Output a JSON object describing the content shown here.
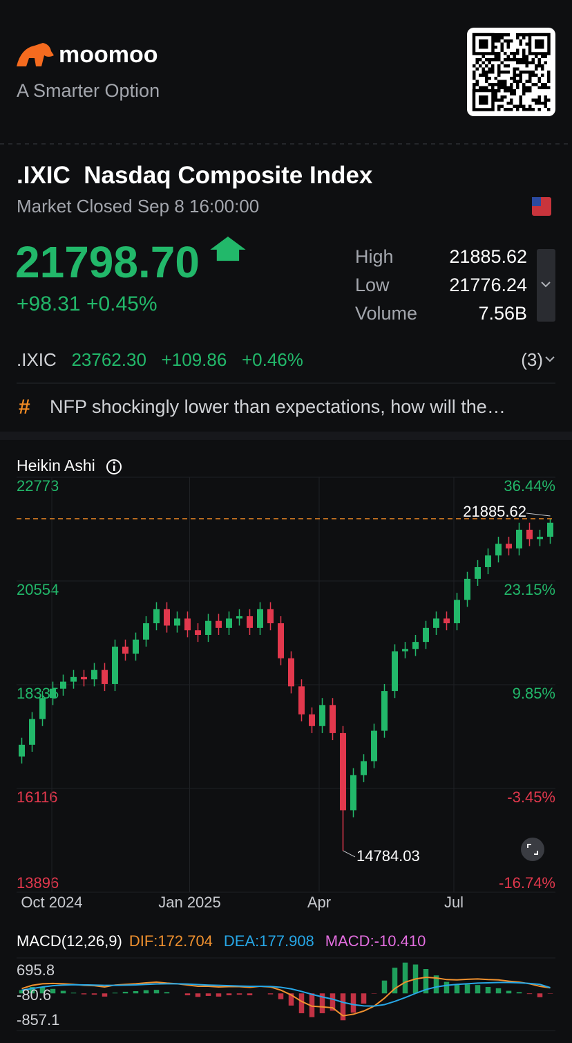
{
  "header": {
    "brand": "moomoo",
    "tagline": "A Smarter Option"
  },
  "quote": {
    "symbol": ".IXIC",
    "name": "Nasdaq Composite Index",
    "status": "Market Closed Sep 8 16:00:00",
    "price": "21798.70",
    "change": "+98.31",
    "change_pct": "+0.45%",
    "stats": [
      {
        "label": "High",
        "value": "21885.62"
      },
      {
        "label": "Low",
        "value": "21776.24"
      },
      {
        "label": "Volume",
        "value": "7.56B"
      }
    ]
  },
  "related": {
    "symbol": ".IXIC",
    "price": "23762.30",
    "change": "+109.86",
    "change_pct": "+0.46%",
    "count": "(3)"
  },
  "news": {
    "icon": "#",
    "text": "NFP shockingly lower than expectations, how will the…"
  },
  "chart_data": [
    {
      "type": "candlestick",
      "title": "Heikin Ashi",
      "xlim": [
        -0.5,
        51.5
      ],
      "xticks": [
        {
          "value": 2.9,
          "label": "Oct 2024"
        },
        {
          "value": 16.2,
          "label": "Jan 2025"
        },
        {
          "value": 28.7,
          "label": "Apr"
        },
        {
          "value": 41.7,
          "label": "Jul"
        }
      ],
      "ylim": [
        13896,
        22773
      ],
      "yticks": [
        22773,
        20554,
        18335,
        16116,
        13896
      ],
      "y2lim": [
        -16.74,
        36.44
      ],
      "y2ticks": [
        {
          "value": 36.44,
          "label": "36.44%"
        },
        {
          "value": 23.15,
          "label": "23.15%"
        },
        {
          "value": 9.85,
          "label": "9.85%"
        },
        {
          "value": -3.45,
          "label": "-3.45%"
        },
        {
          "value": -16.74,
          "label": "-16.74%"
        }
      ],
      "up_color": "#22b86a",
      "down_color": "#e2384d",
      "reference_color": "#f08a24",
      "open": [
        16800,
        17050,
        17600,
        18050,
        18250,
        18400,
        18500,
        18450,
        18650,
        18350,
        19150,
        19000,
        19300,
        19650,
        19950,
        19600,
        19750,
        19500,
        19400,
        19700,
        19550,
        19750,
        19800,
        19550,
        19950,
        19650,
        18900,
        18300,
        17700,
        17450,
        17900,
        17300,
        15650,
        16400,
        16700,
        17350,
        18200,
        19050,
        19100,
        19250,
        19550,
        19750,
        19650,
        20150,
        20600,
        20850,
        21100,
        21350,
        21250,
        21650,
        21450,
        21500
      ],
      "high": [
        17200,
        17750,
        18200,
        18400,
        18550,
        18650,
        18650,
        18800,
        18800,
        19300,
        19300,
        19450,
        19800,
        20100,
        20100,
        19900,
        19900,
        19650,
        19850,
        19850,
        19900,
        19950,
        19950,
        20100,
        20100,
        19800,
        19050,
        18450,
        17850,
        18050,
        18050,
        17450,
        16550,
        16850,
        17500,
        18350,
        19200,
        19250,
        19400,
        19700,
        19900,
        19900,
        20300,
        20750,
        21000,
        21250,
        21500,
        21500,
        21800,
        21800,
        21650,
        21885.62
      ],
      "low": [
        16650,
        16900,
        17450,
        17900,
        18100,
        18250,
        18300,
        18300,
        18200,
        18200,
        18850,
        18850,
        19150,
        19500,
        19450,
        19450,
        19350,
        19250,
        19250,
        19400,
        19400,
        19600,
        19400,
        19400,
        19500,
        18750,
        18150,
        17550,
        17300,
        17300,
        17150,
        14784.03,
        15500,
        16250,
        16550,
        17200,
        18050,
        18900,
        18950,
        19100,
        19400,
        19500,
        19500,
        20000,
        20450,
        20700,
        20950,
        21100,
        21100,
        21300,
        21300,
        21350
      ],
      "close": [
        17050,
        17600,
        18050,
        18250,
        18400,
        18500,
        18450,
        18650,
        18350,
        19150,
        19000,
        19300,
        19650,
        19950,
        19600,
        19750,
        19500,
        19400,
        19700,
        19550,
        19750,
        19800,
        19550,
        19950,
        19650,
        18900,
        18300,
        17700,
        17450,
        17900,
        17300,
        15650,
        16400,
        16700,
        17350,
        18200,
        19050,
        19100,
        19250,
        19550,
        19750,
        19650,
        20150,
        20600,
        20850,
        21100,
        21350,
        21250,
        21650,
        21450,
        21500,
        21800
      ]
    },
    {
      "type": "macd",
      "title": "MACD(12,26,9)",
      "xlim": [
        -0.5,
        51.5
      ],
      "ylim": [
        -1159,
        1105
      ],
      "yticks": [
        695.8,
        -80.6,
        -857.1
      ],
      "up_color": "#22b86a",
      "down_color": "#e2384d",
      "series": [
        {
          "name": "DIF:172.704",
          "color": "#f0912f",
          "style": "line",
          "values": [
            150,
            250,
            300,
            310,
            300,
            280,
            250,
            240,
            200,
            260,
            280,
            300,
            330,
            350,
            320,
            300,
            260,
            220,
            220,
            200,
            210,
            210,
            190,
            220,
            200,
            100,
            -50,
            -250,
            -400,
            -420,
            -450,
            -700,
            -650,
            -550,
            -400,
            -150,
            150,
            350,
            450,
            500,
            480,
            430,
            420,
            440,
            450,
            430,
            420,
            380,
            350,
            300,
            220,
            172.704
          ]
        },
        {
          "name": "DEA:177.908",
          "color": "#27a7e7",
          "style": "line",
          "values": [
            100,
            150,
            200,
            240,
            260,
            270,
            265,
            260,
            250,
            250,
            255,
            265,
            280,
            295,
            300,
            300,
            290,
            275,
            260,
            250,
            240,
            230,
            220,
            220,
            215,
            190,
            140,
            60,
            -30,
            -110,
            -180,
            -280,
            -350,
            -390,
            -395,
            -350,
            -250,
            -130,
            0,
            120,
            200,
            250,
            280,
            300,
            320,
            330,
            340,
            340,
            330,
            310,
            280,
            177.908
          ]
        },
        {
          "name": "MACD:-10.410",
          "color": "#e46ee0",
          "style": "bar",
          "values": [
            100,
            200,
            200,
            140,
            80,
            20,
            -30,
            -40,
            -100,
            20,
            50,
            70,
            100,
            110,
            40,
            0,
            -60,
            -110,
            -80,
            -100,
            -60,
            -40,
            -60,
            0,
            -30,
            -180,
            -380,
            -620,
            -740,
            -620,
            -540,
            -840,
            -600,
            -320,
            -10,
            400,
            800,
            960,
            900,
            760,
            560,
            360,
            280,
            280,
            260,
            200,
            160,
            80,
            40,
            -20,
            -120,
            -10.41
          ]
        }
      ]
    }
  ]
}
